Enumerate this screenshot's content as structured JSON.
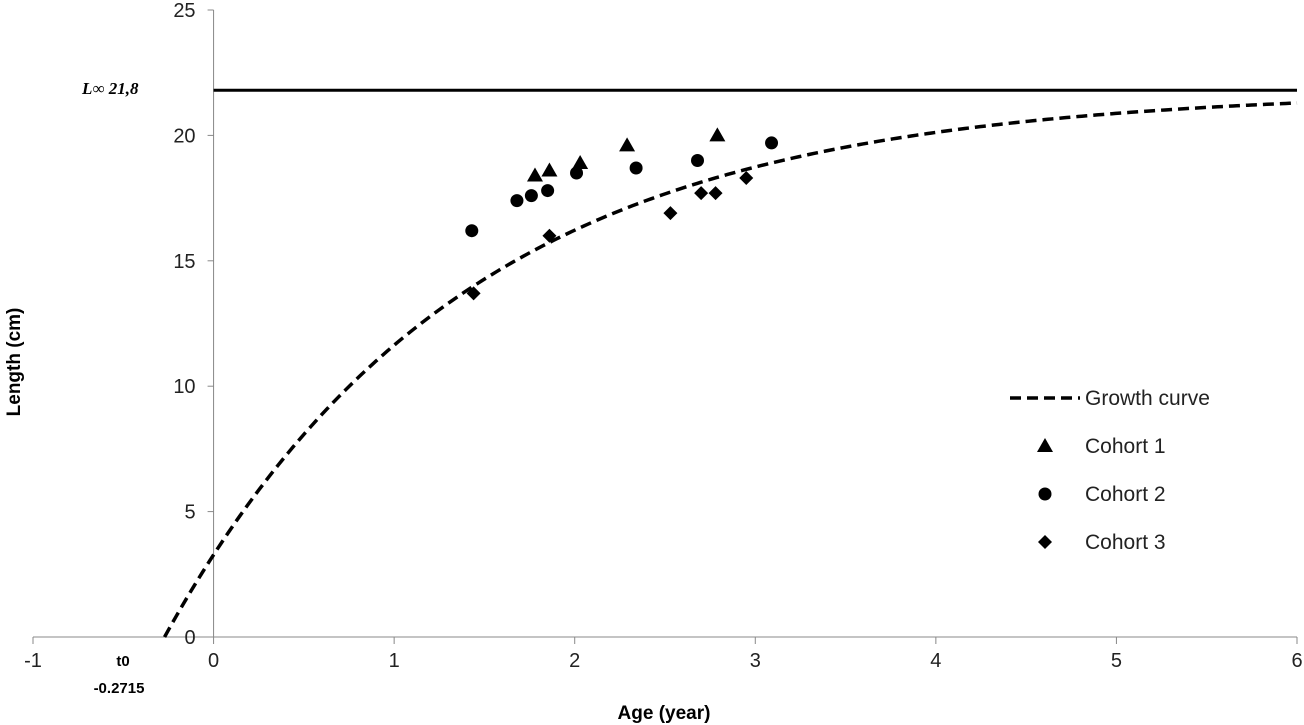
{
  "chart_data": {
    "type": "scatter",
    "xlabel": "Age (year)",
    "ylabel": "Length (cm)",
    "xlim": [
      -1,
      6
    ],
    "ylim": [
      0,
      25
    ],
    "x_ticks": [
      -1,
      0,
      1,
      2,
      3,
      4,
      5,
      6
    ],
    "y_ticks": [
      0,
      5,
      10,
      15,
      20,
      25
    ],
    "grid": false,
    "legend_position": "right",
    "growth_curve": {
      "name": "Growth curve",
      "style": "dashed",
      "color": "#000000",
      "model": "von Bertalanffy",
      "L_inf": 21.8,
      "K": 0.6,
      "t0": -0.2715
    },
    "asymptote": {
      "value": 21.8,
      "label": "L∞ 21,8",
      "style": "solid",
      "color": "#000000"
    },
    "t0_annotation": {
      "line1": "t0",
      "line2": "-0.2715"
    },
    "series": [
      {
        "name": "Cohort 1",
        "marker": "triangle",
        "color": "#000000",
        "points": [
          [
            1.78,
            18.4
          ],
          [
            1.86,
            18.6
          ],
          [
            2.03,
            18.9
          ],
          [
            2.29,
            19.6
          ],
          [
            2.79,
            20.0
          ]
        ]
      },
      {
        "name": "Cohort 2",
        "marker": "circle",
        "color": "#000000",
        "points": [
          [
            1.43,
            16.2
          ],
          [
            1.68,
            17.4
          ],
          [
            1.76,
            17.6
          ],
          [
            1.85,
            17.8
          ],
          [
            2.01,
            18.5
          ],
          [
            2.34,
            18.7
          ],
          [
            2.68,
            19.0
          ],
          [
            3.09,
            19.7
          ]
        ]
      },
      {
        "name": "Cohort 3",
        "marker": "diamond",
        "color": "#000000",
        "points": [
          [
            1.44,
            13.7
          ],
          [
            1.86,
            16.0
          ],
          [
            2.53,
            16.9
          ],
          [
            2.7,
            17.7
          ],
          [
            2.78,
            17.7
          ],
          [
            2.95,
            18.3
          ]
        ]
      }
    ]
  }
}
